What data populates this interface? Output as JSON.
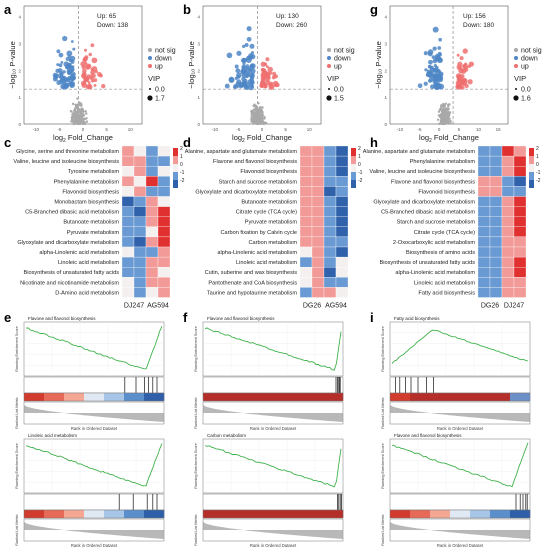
{
  "panel_letters": [
    "a",
    "b",
    "g",
    "c",
    "d",
    "h",
    "e",
    "f",
    "i"
  ],
  "volcano_common": {
    "xlabel_main": "log",
    "xlabel_sub": "2",
    "xlabel_tail": " Fold_Change",
    "ylabel": "−log₁₀ P-value",
    "legend": [
      "not sig",
      "down",
      "up"
    ],
    "vip_title": "VIP",
    "colors": {
      "not_sig": "#a9a9a9",
      "down": "#4f86c6",
      "up": "#ef6f6f"
    }
  },
  "chart_data": [
    {
      "type": "scatter",
      "panel": "a",
      "up_label": "Up: 65",
      "down_label": "Down: 138",
      "vip_legend": [
        "0.0",
        "1.7"
      ],
      "x_ticks": [
        "-10",
        "-5",
        "0",
        "5",
        "10"
      ],
      "y_ticks": [
        "0",
        "1",
        "2",
        "3",
        "4"
      ],
      "xlim": [
        -12,
        14
      ],
      "ylim": [
        0,
        4.4
      ]
    },
    {
      "type": "scatter",
      "panel": "b",
      "up_label": "Up: 130",
      "down_label": "Down: 260",
      "vip_legend": [
        "0.0",
        "1.5"
      ],
      "x_ticks": [
        "-10",
        "-5",
        "0",
        "5",
        "10"
      ],
      "y_ticks": [
        "0",
        "1",
        "2",
        "3",
        "4"
      ],
      "xlim": [
        -12,
        14
      ],
      "ylim": [
        0,
        4.4
      ]
    },
    {
      "type": "scatter",
      "panel": "g",
      "up_label": "Up: 156",
      "down_label": "Down: 180",
      "vip_legend": [
        "0.0",
        "1.6"
      ],
      "x_ticks": [
        "-10",
        "-5",
        "0",
        "5",
        "10",
        "15"
      ],
      "y_ticks": [
        "0",
        "1",
        "2",
        "3",
        "4"
      ],
      "xlim": [
        -14,
        16
      ],
      "ylim": [
        0,
        4.4
      ]
    },
    {
      "type": "heatmap",
      "panel": "c",
      "rows": [
        "Glycine, serine and threonine metabolism",
        "Valine, leucine and isoleucine biosynthesis",
        "Tyrosine metabolism",
        "Phenylalanine metabolism",
        "Flavonoid biosynthesis",
        "Monobactam biosynthesis",
        "C5-Branched dibasic acid metabolism",
        "Butanoate metabolism",
        "Pyruvate metabolism",
        "Glyoxylate and dicarboxylate metabolism",
        "alpha-Linolenic acid metabolism",
        "Linoleic acid metabolism",
        "Biosynthesis of unsaturated fatty acids",
        "Nicotinate and nicotinamide metabolism",
        "D-Amino acid metabolism"
      ],
      "col_labels": [
        "DJ247",
        "AG594"
      ],
      "values": [
        [
          1,
          0,
          -1,
          0
        ],
        [
          1,
          1,
          -1,
          -1
        ],
        [
          0,
          1,
          -1,
          0
        ],
        [
          1,
          0,
          2,
          -1
        ],
        [
          0,
          1,
          -1,
          -1
        ],
        [
          -2,
          -1,
          1,
          0
        ],
        [
          -1,
          -2,
          1,
          2
        ],
        [
          -1,
          -1,
          1,
          2
        ],
        [
          -1,
          -1,
          0,
          2
        ],
        [
          -1,
          -2,
          1,
          2
        ],
        [
          0,
          -1,
          -1,
          1
        ],
        [
          -1,
          -1,
          1,
          1
        ],
        [
          -1,
          -1,
          1,
          0
        ],
        [
          0,
          -1,
          1,
          1
        ],
        [
          0,
          -1,
          0,
          1
        ]
      ],
      "legend_ticks": [
        "2",
        "1",
        "0",
        "-1",
        "-2"
      ]
    },
    {
      "type": "heatmap",
      "panel": "d",
      "rows": [
        "Alanine, aspartate and glutamate metabolism",
        "Flavone and flavonol biosynthesis",
        "Flavonoid biosynthesis",
        "Starch and sucrose metabolism",
        "Glyoxylate and dicarboxylate metabolism",
        "Butanoate metabolism",
        "Citrate cycle (TCA cycle)",
        "Pyruvate metabolism",
        "Carbon fixation by Calvin cycle",
        "Carbon metabolism",
        "alpha-Linolenic acid metabolism",
        "Linoleic acid metabolism",
        "Cutin, suberine and wax biosynthesis",
        "Pantothenate and CoA biosynthesis",
        "Taurine and hypotaurine metabolism"
      ],
      "col_labels": [
        "DG26",
        "AG594"
      ],
      "values": [
        [
          1,
          1,
          -1,
          -2
        ],
        [
          1,
          1,
          -1,
          -2
        ],
        [
          1,
          1,
          -1,
          -2
        ],
        [
          1,
          1,
          -1,
          -1
        ],
        [
          1,
          1,
          -2,
          -1
        ],
        [
          1,
          1,
          -1,
          -2
        ],
        [
          1,
          1,
          -1,
          -2
        ],
        [
          1,
          1,
          -1,
          -2
        ],
        [
          1,
          1,
          -1,
          -2
        ],
        [
          1,
          1,
          -1,
          -1
        ],
        [
          0,
          1,
          -1,
          -2
        ],
        [
          -1,
          1,
          -1,
          0
        ],
        [
          0,
          1,
          -2,
          0
        ],
        [
          0,
          1,
          -1,
          -1
        ],
        [
          -1,
          1,
          1,
          0
        ]
      ],
      "legend_ticks": [
        "2",
        "1",
        "0",
        "-1",
        "-2"
      ]
    },
    {
      "type": "heatmap",
      "panel": "h",
      "rows": [
        "Alanine, aspartate and glutamate metabolism",
        "Phenylalanine metabolism",
        "Valine, leucine and isoleucine biosynthesis",
        "Flavone and flavonol biosynthesis",
        "Flavonoid biosynthesis",
        "Glyoxylate and dicarboxylate metabolism",
        "C5-Branched dibasic acid metabolism",
        "Starch and sucrose metabolism",
        "Citrate cycle (TCA cycle)",
        "2-Oxocarboxylic acid metabolism",
        "Biosynthesis of amino acids",
        "Biosynthesis of unsaturated fatty acids",
        "alpha-Linolenic acid metabolism",
        "Linoleic acid metabolism",
        "Fatty acid biosynthesis"
      ],
      "col_labels": [
        "DG26",
        "DJ247"
      ],
      "values": [
        [
          -1,
          -1,
          2,
          1
        ],
        [
          -1,
          -1,
          1,
          2
        ],
        [
          -1,
          -1,
          1,
          2
        ],
        [
          1,
          1,
          -1,
          -2
        ],
        [
          1,
          1,
          -1,
          -1
        ],
        [
          -1,
          -1,
          1,
          2
        ],
        [
          -1,
          -1,
          1,
          2
        ],
        [
          -1,
          -1,
          1,
          2
        ],
        [
          -1,
          -1,
          1,
          2
        ],
        [
          -1,
          -1,
          1,
          1
        ],
        [
          -1,
          -1,
          1,
          1
        ],
        [
          -1,
          -1,
          1,
          2
        ],
        [
          -1,
          -1,
          1,
          2
        ],
        [
          -1,
          -1,
          1,
          1
        ],
        [
          -1,
          -1,
          1,
          1
        ]
      ],
      "legend_ticks": [
        "2",
        "1",
        "0",
        "-1",
        "-2"
      ]
    },
    {
      "type": "line",
      "panel": "e-top",
      "title": "Flavone and flavonol biosynthesis",
      "ylabel": "Running Enrichment Score",
      "profile": "negative_end_recover",
      "hits": [
        0.72,
        0.8,
        0.86,
        0.89,
        0.92,
        0.95
      ],
      "bar_colors": [
        "#d13c2f",
        "#e66a57",
        "#f4a792",
        "#dfe8f3",
        "#a7c5e6",
        "#5a8fcb",
        "#2f5fa8"
      ],
      "xlabel": "Rank in Ordered Dataset",
      "ylabel2": "Ranked List Metric"
    },
    {
      "type": "line",
      "panel": "e-bottom",
      "title": "Linoleic acid metabolism",
      "ylabel": "Running Enrichment Score",
      "profile": "negative_end_recover",
      "hits": [
        0.68,
        0.78,
        0.88,
        0.92,
        0.95
      ],
      "bar_colors": [
        "#d13c2f",
        "#e66a57",
        "#f4a792",
        "#dfe8f3",
        "#a7c5e6",
        "#5a8fcb",
        "#2f5fa8"
      ],
      "xlabel": "Rank in Ordered Dataset",
      "ylabel2": "Ranked List Metric"
    },
    {
      "type": "line",
      "panel": "f-top",
      "title": "Flavone and flavonol biosynthesis",
      "ylabel": "Running Enrichment Score",
      "profile": "negative_linear",
      "hits": [
        0.95,
        0.96,
        0.97,
        0.975,
        0.98
      ],
      "bar_colors": [
        "#b52f2a"
      ],
      "xlabel": "Rank in Ordered Dataset",
      "ylabel2": "Ranked List Metric"
    },
    {
      "type": "line",
      "panel": "f-bottom",
      "title": "Carbon metabolism",
      "ylabel": "Running Enrichment Score",
      "profile": "negative_linear",
      "hits": [
        0.96,
        0.97,
        0.98,
        0.99
      ],
      "bar_colors": [
        "#b52f2a"
      ],
      "xlabel": "Rank in Ordered Dataset",
      "ylabel2": "Ranked List Metric"
    },
    {
      "type": "line",
      "panel": "i-top",
      "title": "Fatty acid biosynthesis",
      "ylabel": "Running Enrichment Score",
      "profile": "positive_early",
      "hits": [
        0.04,
        0.07,
        0.11,
        0.15,
        0.2,
        0.26,
        0.31
      ],
      "bar_colors": [
        "#d13c2f",
        "#b52f2a",
        "#b52f2a",
        "#b52f2a",
        "#b52f2a",
        "#b52f2a",
        "#6d8fc7"
      ],
      "xlabel": "Rank in Ordered Dataset",
      "ylabel2": "Ranked List Metric"
    },
    {
      "type": "line",
      "panel": "i-bottom",
      "title": "Flavone and flavonol biosynthesis",
      "ylabel": "Running Enrichment Score",
      "profile": "negative_end_recover",
      "hits": [
        0.9,
        0.93,
        0.95,
        0.97,
        0.98
      ],
      "bar_colors": [
        "#d13c2f",
        "#e66a57",
        "#f4a792",
        "#dfe8f3",
        "#a7c5e6",
        "#5a8fcb",
        "#2f5fa8"
      ],
      "xlabel": "Rank in Ordered Dataset",
      "ylabel2": "Ranked List Metric"
    }
  ]
}
